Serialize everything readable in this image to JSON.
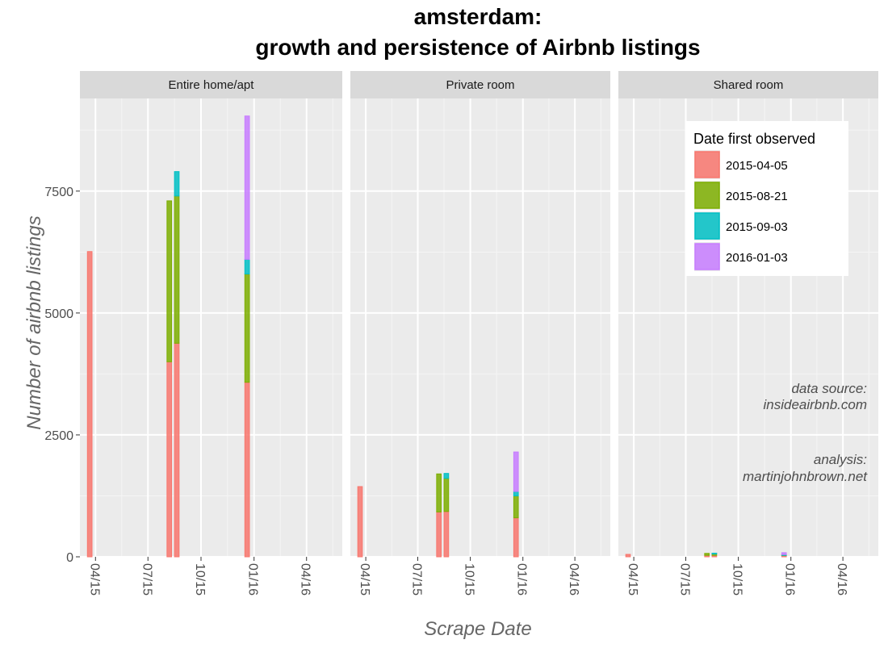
{
  "chart_data": {
    "type": "bar",
    "stacked": true,
    "title_lines": [
      "amsterdam:",
      "growth and persistence of Airbnb listings"
    ],
    "xlabel": "Scrape Date",
    "ylabel": "Number of airbnb listings",
    "y_ticks": [
      0,
      2500,
      5000,
      7500
    ],
    "ylim": [
      0,
      9400
    ],
    "x_ticks": [
      "2015-04-15",
      "2015-07-15",
      "2015-10-15",
      "2016-01-15",
      "2016-04-15"
    ],
    "x_tick_labels": [
      "04/15",
      "07/15",
      "10/15",
      "01/16",
      "04/16"
    ],
    "xlim": [
      "2015-03-19",
      "2016-06-16"
    ],
    "bar_width_days": 8,
    "grid": true,
    "legend": {
      "title": "Date first observed",
      "position": "top-right",
      "entries": [
        {
          "label": "2015-04-05",
          "color": "#F8766D"
        },
        {
          "label": "2015-08-21",
          "color": "#7CAE00"
        },
        {
          "label": "2015-09-03",
          "color": "#00BFC4"
        },
        {
          "label": "2016-01-03",
          "color": "#C77CFF"
        }
      ]
    },
    "cohorts": [
      "2015-04-05",
      "2015-08-21",
      "2015-09-03",
      "2016-01-03"
    ],
    "panels": [
      {
        "strip": "Entire home/apt",
        "bars": [
          {
            "date": "2015-04-05",
            "values": [
              6260,
              0,
              0,
              0
            ]
          },
          {
            "date": "2015-08-21",
            "values": [
              4000,
              3300,
              0,
              0
            ]
          },
          {
            "date": "2015-09-03",
            "values": [
              4380,
              3020,
              500,
              0
            ]
          },
          {
            "date": "2016-01-03",
            "values": [
              3580,
              2220,
              300,
              2940
            ]
          }
        ]
      },
      {
        "strip": "Private room",
        "bars": [
          {
            "date": "2015-04-05",
            "values": [
              1440,
              0,
              0,
              0
            ]
          },
          {
            "date": "2015-08-21",
            "values": [
              920,
              780,
              0,
              0
            ]
          },
          {
            "date": "2015-09-03",
            "values": [
              930,
              680,
              100,
              0
            ]
          },
          {
            "date": "2016-01-03",
            "values": [
              800,
              450,
              90,
              810
            ]
          }
        ]
      },
      {
        "strip": "Shared room",
        "bars": [
          {
            "date": "2015-04-05",
            "values": [
              50,
              0,
              0,
              0
            ]
          },
          {
            "date": "2015-08-21",
            "values": [
              30,
              40,
              0,
              0
            ]
          },
          {
            "date": "2015-09-03",
            "values": [
              30,
              40,
              5,
              0
            ]
          },
          {
            "date": "2016-01-03",
            "values": [
              25,
              15,
              5,
              40
            ]
          }
        ]
      }
    ],
    "annotations": [
      {
        "lines": [
          "data source:",
          "insideairbnb.com"
        ]
      },
      {
        "lines": [
          "analysis:",
          "martinjohnbrown.net"
        ]
      }
    ]
  }
}
